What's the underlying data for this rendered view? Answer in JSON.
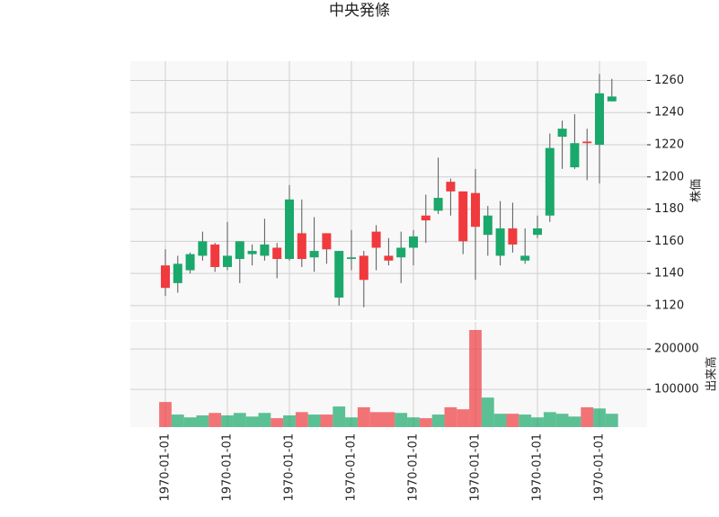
{
  "chart_data": {
    "type": "candlestick",
    "title": "中央発條",
    "ylabel": "株価",
    "categories": [
      "1970-01-01",
      null,
      null,
      null,
      null,
      "1970-01-01",
      null,
      null,
      null,
      null,
      "1970-01-01",
      null,
      null,
      null,
      null,
      "1970-01-01",
      null,
      null,
      null,
      null,
      "1970-01-01",
      null,
      null,
      null,
      null,
      "1970-01-01",
      null,
      null,
      null,
      null,
      "1970-01-01",
      null,
      null,
      null,
      null,
      "1970-01-01",
      null
    ],
    "open": [
      1145,
      1134,
      1142,
      1151,
      1158,
      1144,
      1149,
      1152,
      1151,
      1156,
      1149,
      1165,
      1150,
      1165,
      1125,
      1149,
      1151,
      1166,
      1151,
      1150,
      1156,
      1176,
      1179,
      1197,
      1191,
      1190,
      1164,
      1151,
      1168,
      1148,
      1164,
      1176,
      1225,
      1206,
      1222,
      1220,
      1247
    ],
    "high": [
      1155,
      1151,
      1153,
      1166,
      1159,
      1172,
      1160,
      1158,
      1174,
      1159,
      1195,
      1186,
      1175,
      1165,
      1154,
      1167,
      1154,
      1170,
      1162,
      1166,
      1167,
      1189,
      1212,
      1199,
      1191,
      1205,
      1182,
      1185,
      1184,
      1168,
      1176,
      1227,
      1235,
      1239,
      1230,
      1264,
      1261
    ],
    "low": [
      1126,
      1128,
      1140,
      1148,
      1141,
      1142,
      1134,
      1145,
      1148,
      1137,
      1148,
      1144,
      1141,
      1146,
      1120,
      1142,
      1119,
      1142,
      1145,
      1134,
      1145,
      1159,
      1177,
      1176,
      1152,
      1136,
      1151,
      1145,
      1153,
      1146,
      1162,
      1172,
      1205,
      1205,
      1198,
      1196,
      1247
    ],
    "close": [
      1131,
      1146,
      1152,
      1160,
      1144,
      1151,
      1160,
      1154,
      1158,
      1149,
      1186,
      1149,
      1154,
      1155,
      1154,
      1150,
      1136,
      1156,
      1148,
      1156,
      1163,
      1173,
      1187,
      1191,
      1160,
      1169,
      1176,
      1168,
      1158,
      1151,
      1168,
      1218,
      1230,
      1221,
      1221,
      1252,
      1250
    ],
    "up_color": "#1aa86b",
    "down_color": "#f03a3e",
    "ylim": [
      1111,
      1272
    ],
    "yticks": [
      1120,
      1140,
      1160,
      1180,
      1200,
      1220,
      1240,
      1260
    ],
    "grid": true,
    "volume": {
      "ylabel": "出来高",
      "values": [
        69000,
        38000,
        31000,
        36000,
        42000,
        36000,
        42000,
        33000,
        42000,
        29000,
        36000,
        44000,
        38000,
        38000,
        58000,
        31000,
        56000,
        44000,
        44000,
        42000,
        31000,
        29000,
        38000,
        56000,
        51000,
        247000,
        80000,
        40000,
        40000,
        38000,
        31000,
        44000,
        40000,
        33000,
        56000,
        53000,
        40000
      ],
      "ylim": [
        7000,
        267000
      ],
      "yticks": [
        100000,
        200000
      ]
    }
  }
}
